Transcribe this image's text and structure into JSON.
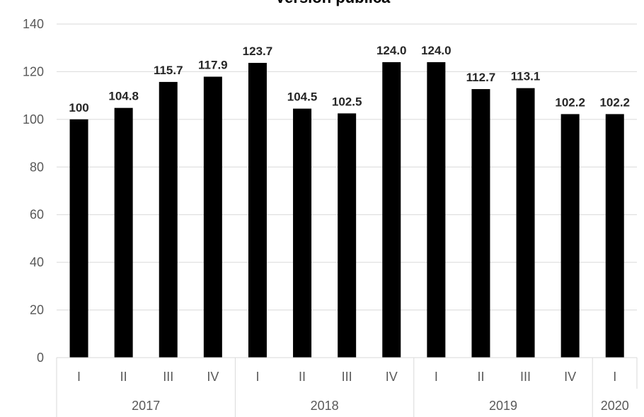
{
  "chart_data": {
    "type": "bar",
    "title": "Versión pública",
    "xlabel": "",
    "ylabel": "",
    "ylim": [
      0,
      140
    ],
    "yticks": [
      0,
      20,
      40,
      60,
      80,
      100,
      120,
      140
    ],
    "grid": true,
    "legend": "none",
    "bar_color": "#000000",
    "categories": [
      "I",
      "II",
      "III",
      "IV",
      "I",
      "II",
      "III",
      "IV",
      "I",
      "II",
      "III",
      "IV",
      "I"
    ],
    "groups": [
      {
        "label": "2017",
        "count": 4
      },
      {
        "label": "2018",
        "count": 4
      },
      {
        "label": "2019",
        "count": 4
      },
      {
        "label": "2020",
        "count": 1
      }
    ],
    "values": [
      100,
      104.8,
      115.7,
      117.9,
      123.7,
      104.5,
      102.5,
      124.0,
      124.0,
      112.7,
      113.1,
      102.2,
      102.2
    ],
    "data_labels": [
      "100",
      "104.8",
      "115.7",
      "117.9",
      "123.7",
      "104.5",
      "102.5",
      "124.0",
      "124.0",
      "112.7",
      "113.1",
      "102.2",
      "102.2"
    ]
  }
}
